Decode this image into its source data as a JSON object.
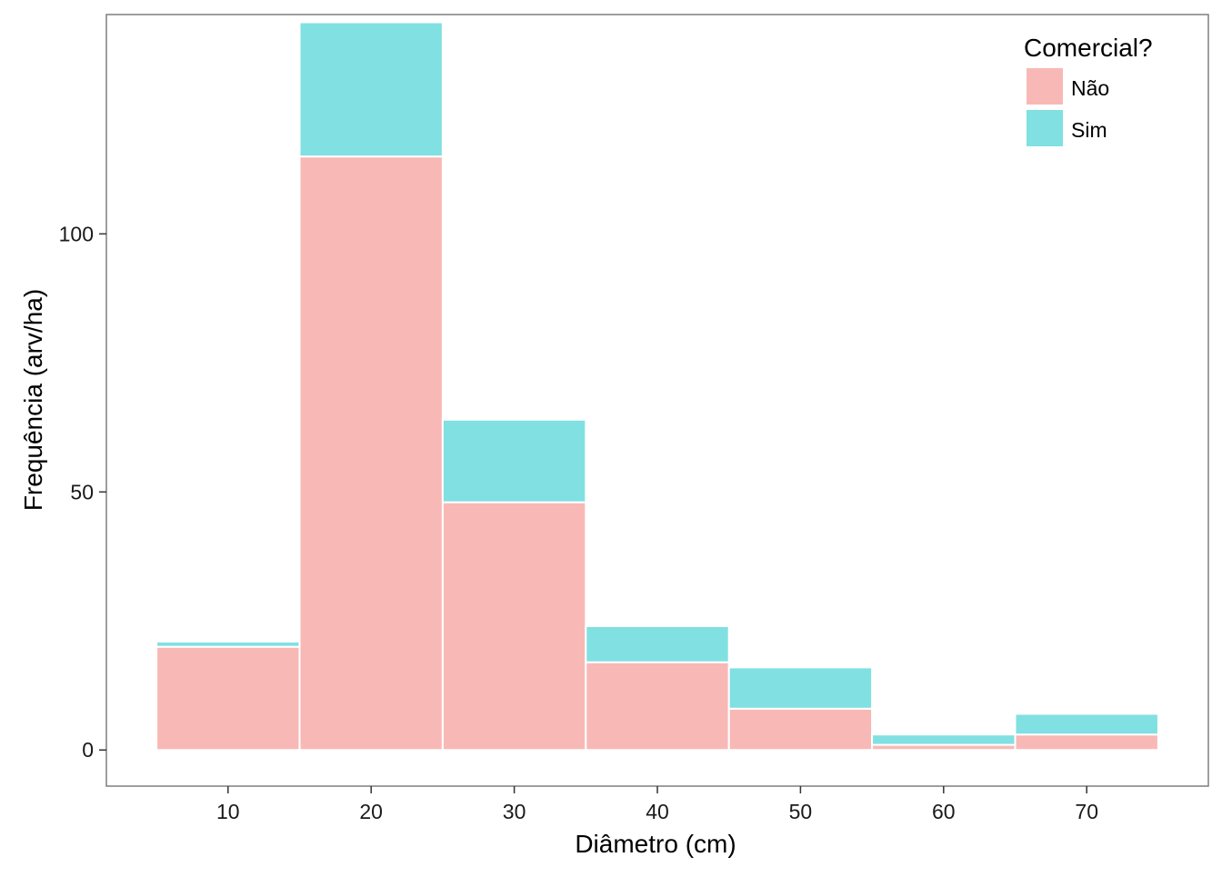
{
  "chart_data": {
    "type": "bar",
    "stacked": true,
    "title": "",
    "xlabel": "Diâmetro (cm)",
    "ylabel": "Frequência (arv/ha)",
    "bins": [
      {
        "start": 5,
        "end": 15
      },
      {
        "start": 15,
        "end": 25
      },
      {
        "start": 25,
        "end": 35
      },
      {
        "start": 35,
        "end": 45
      },
      {
        "start": 45,
        "end": 55
      },
      {
        "start": 55,
        "end": 65
      },
      {
        "start": 65,
        "end": 75
      }
    ],
    "series": [
      {
        "name": "Não",
        "color": "#F8B9B6",
        "values": [
          20,
          115,
          48,
          17,
          8,
          1,
          3
        ]
      },
      {
        "name": "Sim",
        "color": "#80E0E2",
        "values": [
          1,
          26,
          16,
          7,
          8,
          2,
          4
        ]
      }
    ],
    "xlim": [
      1.5,
      78.5
    ],
    "ylim": [
      -7,
      142.5
    ],
    "xticks": [
      10,
      20,
      30,
      40,
      50,
      60,
      70
    ],
    "xtick_labels": [
      "10",
      "20",
      "30",
      "40",
      "50",
      "60",
      "70"
    ],
    "yticks": [
      0,
      50,
      100
    ],
    "ytick_labels": [
      "0",
      "50",
      "100"
    ],
    "grid": false,
    "legend": {
      "title": "Comercial?",
      "position": "top-right"
    },
    "panel_border_color": "#7F7F7F",
    "bar_outline_color": "#FFFFFF"
  }
}
